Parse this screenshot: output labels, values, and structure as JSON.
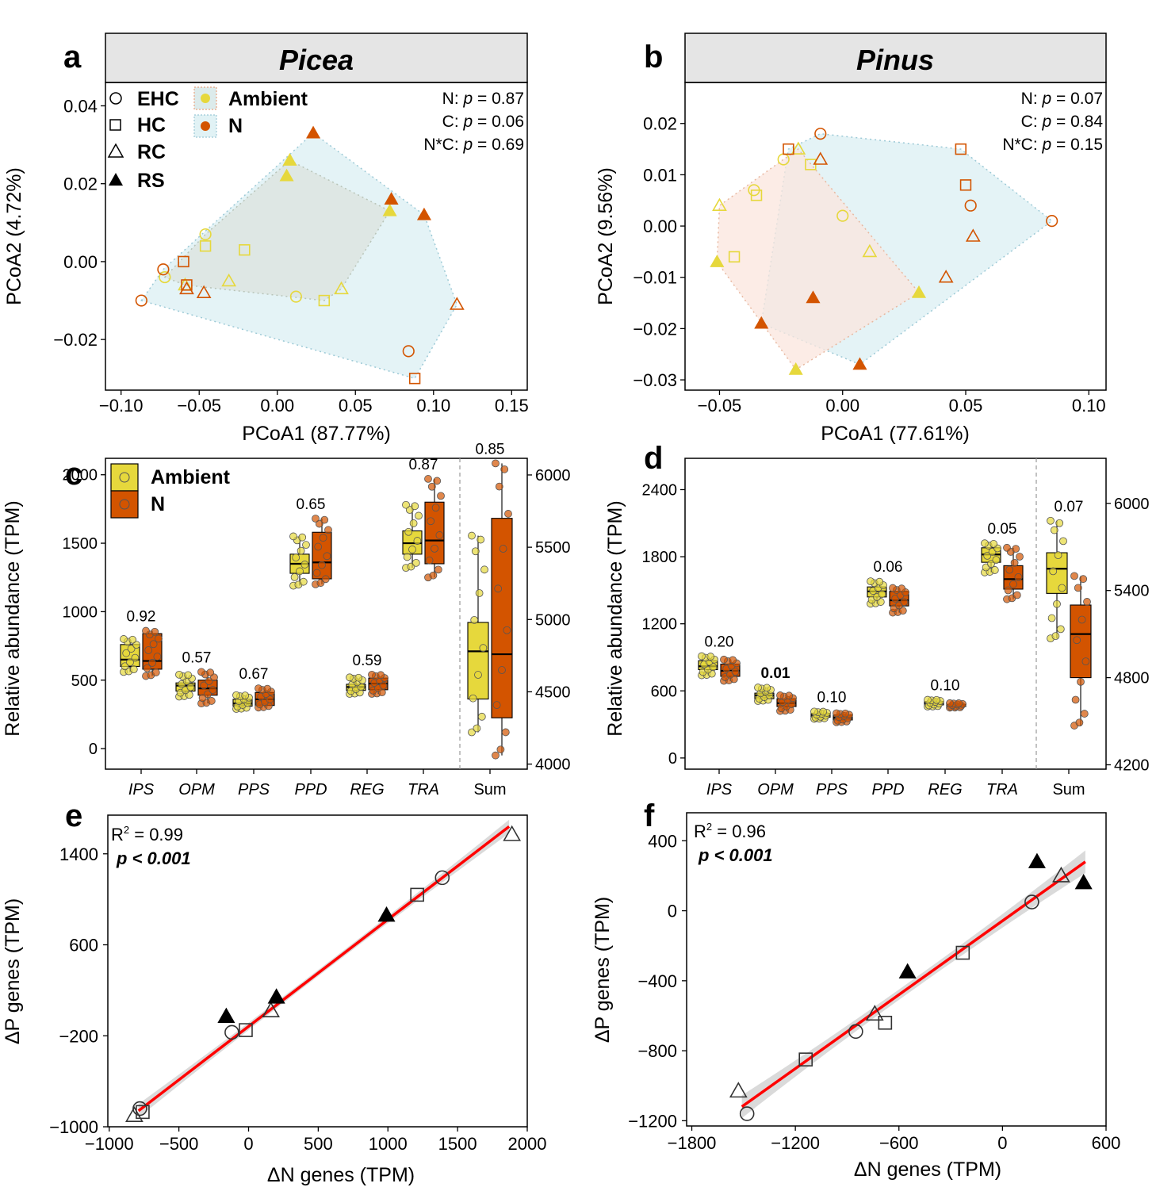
{
  "colors": {
    "ambient": "#E6D83C",
    "n": "#D35400",
    "ambient_hull": "#DCEBEB",
    "n_hull": "#E1F2F5",
    "n_hull_b": "#FBE6DE",
    "fit": "#FF0000",
    "band": "#D3D3D3"
  },
  "legend": {
    "shapes": [
      {
        "label": "EHC",
        "shape": "circle"
      },
      {
        "label": "HC",
        "shape": "square"
      },
      {
        "label": "RC",
        "shape": "triangle-open"
      },
      {
        "label": "RS",
        "shape": "triangle-filled"
      }
    ],
    "treatments": [
      {
        "label": "Ambient",
        "color_key": "ambient"
      },
      {
        "label": "N",
        "color_key": "n"
      }
    ]
  },
  "chart_data": [
    {
      "panel": "a",
      "type": "scatter",
      "title": "Picea",
      "xlabel": "PCoA1 (87.77%)",
      "ylabel": "PCoA2 (4.72%)",
      "xlim": [
        -0.11,
        0.16
      ],
      "ylim": [
        -0.033,
        0.046
      ],
      "xticks": [
        "−0.10",
        "−0.05",
        "0.00",
        "0.05",
        "0.10",
        "0.15"
      ],
      "xtick_values": [
        -0.1,
        -0.05,
        0.0,
        0.05,
        0.1,
        0.15
      ],
      "yticks": [
        "−0.02",
        "0.00",
        "0.02",
        "0.04"
      ],
      "ytick_values": [
        -0.02,
        0.0,
        0.02,
        0.04
      ],
      "stats": [
        {
          "label": "N: ",
          "p": "p = 0.87"
        },
        {
          "label": "C: ",
          "p": "p = 0.06"
        },
        {
          "label": "N*C: ",
          "p": "p = 0.69"
        }
      ],
      "points": [
        {
          "x": -0.072,
          "y": -0.004,
          "s": "EHC",
          "t": "ambient"
        },
        {
          "x": -0.046,
          "y": 0.007,
          "s": "EHC",
          "t": "ambient"
        },
        {
          "x": 0.012,
          "y": -0.009,
          "s": "EHC",
          "t": "ambient"
        },
        {
          "x": -0.046,
          "y": 0.004,
          "s": "HC",
          "t": "ambient"
        },
        {
          "x": -0.021,
          "y": 0.003,
          "s": "HC",
          "t": "ambient"
        },
        {
          "x": 0.03,
          "y": -0.01,
          "s": "HC",
          "t": "ambient"
        },
        {
          "x": -0.059,
          "y": -0.006,
          "s": "RC",
          "t": "ambient"
        },
        {
          "x": -0.031,
          "y": -0.005,
          "s": "RC",
          "t": "ambient"
        },
        {
          "x": 0.041,
          "y": -0.007,
          "s": "RC",
          "t": "ambient"
        },
        {
          "x": 0.006,
          "y": 0.022,
          "s": "RS",
          "t": "ambient"
        },
        {
          "x": 0.008,
          "y": 0.026,
          "s": "RS",
          "t": "ambient"
        },
        {
          "x": 0.072,
          "y": 0.013,
          "s": "RS",
          "t": "ambient"
        },
        {
          "x": -0.087,
          "y": -0.01,
          "s": "EHC",
          "t": "n"
        },
        {
          "x": -0.073,
          "y": -0.002,
          "s": "EHC",
          "t": "n"
        },
        {
          "x": 0.084,
          "y": -0.023,
          "s": "EHC",
          "t": "n"
        },
        {
          "x": -0.06,
          "y": 0.0,
          "s": "HC",
          "t": "n"
        },
        {
          "x": -0.058,
          "y": -0.006,
          "s": "HC",
          "t": "n"
        },
        {
          "x": 0.088,
          "y": -0.03,
          "s": "HC",
          "t": "n"
        },
        {
          "x": -0.058,
          "y": -0.007,
          "s": "RC",
          "t": "n"
        },
        {
          "x": -0.047,
          "y": -0.008,
          "s": "RC",
          "t": "n"
        },
        {
          "x": 0.115,
          "y": -0.011,
          "s": "RC",
          "t": "n"
        },
        {
          "x": 0.023,
          "y": 0.033,
          "s": "RS",
          "t": "n"
        },
        {
          "x": 0.073,
          "y": 0.016,
          "s": "RS",
          "t": "n"
        },
        {
          "x": 0.094,
          "y": 0.012,
          "s": "RS",
          "t": "n"
        }
      ]
    },
    {
      "panel": "b",
      "type": "scatter",
      "title": "Pinus",
      "xlabel": "PCoA1 (77.61%)",
      "ylabel": "PCoA2 (9.56%)",
      "xlim": [
        -0.064,
        0.107
      ],
      "ylim": [
        -0.032,
        0.028
      ],
      "xticks": [
        "−0.05",
        "0.00",
        "0.05",
        "0.10"
      ],
      "xtick_values": [
        -0.05,
        0.0,
        0.05,
        0.1
      ],
      "yticks": [
        "−0.03",
        "−0.02",
        "−0.01",
        "0.00",
        "0.01",
        "0.02"
      ],
      "ytick_values": [
        -0.03,
        -0.02,
        -0.01,
        0.0,
        0.01,
        0.02
      ],
      "stats": [
        {
          "label": "N: ",
          "p": "p = 0.07"
        },
        {
          "label": "C: ",
          "p": "p = 0.84"
        },
        {
          "label": "N*C: ",
          "p": "p = 0.15"
        }
      ],
      "points": [
        {
          "x": -0.036,
          "y": 0.007,
          "s": "EHC",
          "t": "ambient"
        },
        {
          "x": -0.024,
          "y": 0.013,
          "s": "EHC",
          "t": "ambient"
        },
        {
          "x": 0.0,
          "y": 0.002,
          "s": "EHC",
          "t": "ambient"
        },
        {
          "x": -0.044,
          "y": -0.006,
          "s": "HC",
          "t": "ambient"
        },
        {
          "x": -0.035,
          "y": 0.006,
          "s": "HC",
          "t": "ambient"
        },
        {
          "x": -0.013,
          "y": 0.012,
          "s": "HC",
          "t": "ambient"
        },
        {
          "x": -0.05,
          "y": 0.004,
          "s": "RC",
          "t": "ambient"
        },
        {
          "x": -0.018,
          "y": 0.015,
          "s": "RC",
          "t": "ambient"
        },
        {
          "x": 0.011,
          "y": -0.005,
          "s": "RC",
          "t": "ambient"
        },
        {
          "x": -0.051,
          "y": -0.007,
          "s": "RS",
          "t": "ambient"
        },
        {
          "x": -0.019,
          "y": -0.028,
          "s": "RS",
          "t": "ambient"
        },
        {
          "x": 0.031,
          "y": -0.013,
          "s": "RS",
          "t": "ambient"
        },
        {
          "x": -0.009,
          "y": 0.018,
          "s": "EHC",
          "t": "n"
        },
        {
          "x": 0.052,
          "y": 0.004,
          "s": "EHC",
          "t": "n"
        },
        {
          "x": 0.085,
          "y": 0.001,
          "s": "EHC",
          "t": "n"
        },
        {
          "x": -0.022,
          "y": 0.015,
          "s": "HC",
          "t": "n"
        },
        {
          "x": 0.048,
          "y": 0.015,
          "s": "HC",
          "t": "n"
        },
        {
          "x": 0.05,
          "y": 0.008,
          "s": "HC",
          "t": "n"
        },
        {
          "x": -0.009,
          "y": 0.013,
          "s": "RC",
          "t": "n"
        },
        {
          "x": 0.042,
          "y": -0.01,
          "s": "RC",
          "t": "n"
        },
        {
          "x": 0.053,
          "y": -0.002,
          "s": "RC",
          "t": "n"
        },
        {
          "x": -0.033,
          "y": -0.019,
          "s": "RS",
          "t": "n"
        },
        {
          "x": -0.012,
          "y": -0.014,
          "s": "RS",
          "t": "n"
        },
        {
          "x": 0.007,
          "y": -0.027,
          "s": "RS",
          "t": "n"
        }
      ]
    },
    {
      "panel": "c",
      "type": "box",
      "ylabel": "Relative abundance (TPM)",
      "ylim": [
        -150,
        2120
      ],
      "yticks": [
        "0",
        "500",
        "1000",
        "1500",
        "2000"
      ],
      "ytick_values": [
        0,
        500,
        1000,
        1500,
        2000
      ],
      "y2lim": [
        3965,
        6115
      ],
      "y2ticks": [
        "4000",
        "4500",
        "5000",
        "5500",
        "6000"
      ],
      "y2tick_values": [
        4000,
        4500,
        5000,
        5500,
        6000
      ],
      "categories": [
        "IPS",
        "OPM",
        "PPS",
        "PPD",
        "REG",
        "TRA",
        "Sum"
      ],
      "pvalues": [
        "0.92",
        "0.57",
        "0.67",
        "0.65",
        "0.59",
        "0.87",
        "0.85"
      ],
      "pvalue_bold": [
        false,
        false,
        false,
        false,
        false,
        false,
        false
      ],
      "boxes": [
        {
          "cat": "IPS",
          "t": "ambient",
          "min": 560,
          "q1": 600,
          "med": 650,
          "q3": 760,
          "max": 800,
          "axis": "left"
        },
        {
          "cat": "IPS",
          "t": "n",
          "min": 530,
          "q1": 580,
          "med": 640,
          "q3": 840,
          "max": 860,
          "axis": "left"
        },
        {
          "cat": "OPM",
          "t": "ambient",
          "min": 380,
          "q1": 420,
          "med": 460,
          "q3": 480,
          "max": 540,
          "axis": "left"
        },
        {
          "cat": "OPM",
          "t": "n",
          "min": 330,
          "q1": 390,
          "med": 440,
          "q3": 500,
          "max": 560,
          "axis": "left"
        },
        {
          "cat": "PPS",
          "t": "ambient",
          "min": 290,
          "q1": 310,
          "med": 330,
          "q3": 360,
          "max": 390,
          "axis": "left"
        },
        {
          "cat": "PPS",
          "t": "n",
          "min": 300,
          "q1": 315,
          "med": 360,
          "q3": 410,
          "max": 440,
          "axis": "left"
        },
        {
          "cat": "PPD",
          "t": "ambient",
          "min": 1190,
          "q1": 1280,
          "med": 1350,
          "q3": 1420,
          "max": 1550,
          "axis": "left"
        },
        {
          "cat": "PPD",
          "t": "n",
          "min": 1200,
          "q1": 1240,
          "med": 1360,
          "q3": 1580,
          "max": 1680,
          "axis": "left"
        },
        {
          "cat": "REG",
          "t": "ambient",
          "min": 400,
          "q1": 425,
          "med": 450,
          "q3": 470,
          "max": 520,
          "axis": "left"
        },
        {
          "cat": "REG",
          "t": "n",
          "min": 400,
          "q1": 430,
          "med": 475,
          "q3": 515,
          "max": 540,
          "axis": "left"
        },
        {
          "cat": "TRA",
          "t": "ambient",
          "min": 1320,
          "q1": 1420,
          "med": 1500,
          "q3": 1590,
          "max": 1780,
          "axis": "left"
        },
        {
          "cat": "TRA",
          "t": "n",
          "min": 1250,
          "q1": 1350,
          "med": 1520,
          "q3": 1800,
          "max": 1970,
          "axis": "left"
        },
        {
          "cat": "Sum",
          "t": "ambient",
          "min": 4220,
          "q1": 4450,
          "med": 4780,
          "q3": 4980,
          "max": 5580,
          "axis": "right"
        },
        {
          "cat": "Sum",
          "t": "n",
          "min": 4060,
          "q1": 4320,
          "med": 4760,
          "q3": 5700,
          "max": 6080,
          "axis": "right"
        }
      ],
      "legend": [
        "Ambient",
        "N"
      ]
    },
    {
      "panel": "d",
      "type": "box",
      "ylabel": "Relative abundance (TPM)",
      "ylim": [
        -100,
        2680
      ],
      "yticks": [
        "0",
        "600",
        "1200",
        "1800",
        "2400"
      ],
      "ytick_values": [
        0,
        600,
        1200,
        1800,
        2400
      ],
      "y2lim": [
        4170,
        6310
      ],
      "y2ticks": [
        "4200",
        "4800",
        "5400",
        "6000"
      ],
      "y2tick_values": [
        4200,
        4800,
        5400,
        6000
      ],
      "categories": [
        "IPS",
        "OPM",
        "PPS",
        "PPD",
        "REG",
        "TRA",
        "Sum"
      ],
      "pvalues": [
        "0.20",
        "0.01",
        "0.10",
        "0.06",
        "0.10",
        "0.05",
        "0.07"
      ],
      "pvalue_bold": [
        false,
        true,
        false,
        false,
        false,
        false,
        false
      ],
      "boxes": [
        {
          "cat": "IPS",
          "t": "ambient",
          "min": 740,
          "q1": 790,
          "med": 820,
          "q3": 870,
          "max": 910,
          "axis": "left"
        },
        {
          "cat": "IPS",
          "t": "n",
          "min": 690,
          "q1": 730,
          "med": 780,
          "q3": 840,
          "max": 880,
          "axis": "left"
        },
        {
          "cat": "OPM",
          "t": "ambient",
          "min": 510,
          "q1": 530,
          "med": 560,
          "q3": 580,
          "max": 630,
          "axis": "left"
        },
        {
          "cat": "OPM",
          "t": "n",
          "min": 420,
          "q1": 460,
          "med": 490,
          "q3": 530,
          "max": 560,
          "axis": "left"
        },
        {
          "cat": "PPS",
          "t": "ambient",
          "min": 350,
          "q1": 365,
          "med": 385,
          "q3": 400,
          "max": 415,
          "axis": "left"
        },
        {
          "cat": "PPS",
          "t": "n",
          "min": 320,
          "q1": 340,
          "med": 360,
          "q3": 385,
          "max": 400,
          "axis": "left"
        },
        {
          "cat": "PPD",
          "t": "ambient",
          "min": 1380,
          "q1": 1440,
          "med": 1490,
          "q3": 1530,
          "max": 1580,
          "axis": "left"
        },
        {
          "cat": "PPD",
          "t": "n",
          "min": 1300,
          "q1": 1360,
          "med": 1410,
          "q3": 1490,
          "max": 1520,
          "axis": "left"
        },
        {
          "cat": "REG",
          "t": "ambient",
          "min": 460,
          "q1": 475,
          "med": 490,
          "q3": 505,
          "max": 520,
          "axis": "left"
        },
        {
          "cat": "REG",
          "t": "n",
          "min": 450,
          "q1": 460,
          "med": 475,
          "q3": 480,
          "max": 490,
          "axis": "left"
        },
        {
          "cat": "TRA",
          "t": "ambient",
          "min": 1660,
          "q1": 1750,
          "med": 1820,
          "q3": 1880,
          "max": 1920,
          "axis": "left"
        },
        {
          "cat": "TRA",
          "t": "n",
          "min": 1420,
          "q1": 1510,
          "med": 1600,
          "q3": 1720,
          "max": 1880,
          "axis": "left"
        },
        {
          "cat": "Sum",
          "t": "ambient",
          "min": 5070,
          "q1": 5380,
          "med": 5550,
          "q3": 5660,
          "max": 5880,
          "axis": "right"
        },
        {
          "cat": "Sum",
          "t": "n",
          "min": 4470,
          "q1": 4800,
          "med": 5100,
          "q3": 5300,
          "max": 5500,
          "axis": "right"
        }
      ]
    },
    {
      "panel": "e",
      "type": "scatter",
      "xlabel": "ΔN genes (TPM)",
      "ylabel": "ΔP genes (TPM)",
      "xlim": [
        -1010,
        2000
      ],
      "ylim": [
        -1000,
        1740
      ],
      "xticks": [
        "−1000",
        "−500",
        "0",
        "500",
        "1000",
        "1500",
        "2000"
      ],
      "xtick_values": [
        -1000,
        -500,
        0,
        500,
        1000,
        1500,
        2000
      ],
      "yticks": [
        "−1000",
        "−200",
        "600",
        "1400"
      ],
      "ytick_values": [
        -1000,
        -200,
        600,
        1400
      ],
      "r2_label": "R",
      "r2_sup": "2",
      "r2_value": " = 0.99",
      "p_label": "p < 0.001",
      "fit": {
        "x": [
          -790,
          1870
        ],
        "y": [
          -860,
          1640
        ]
      },
      "band_halfwidth": 60,
      "points": [
        {
          "x": -820,
          "y": -900,
          "s": "RC"
        },
        {
          "x": -780,
          "y": -840,
          "s": "EHC"
        },
        {
          "x": -760,
          "y": -870,
          "s": "HC"
        },
        {
          "x": -160,
          "y": -30,
          "s": "RS"
        },
        {
          "x": -120,
          "y": -170,
          "s": "EHC"
        },
        {
          "x": -20,
          "y": -150,
          "s": "HC"
        },
        {
          "x": 160,
          "y": 20,
          "s": "RC"
        },
        {
          "x": 200,
          "y": 140,
          "s": "RS"
        },
        {
          "x": 990,
          "y": 860,
          "s": "RS"
        },
        {
          "x": 1210,
          "y": 1040,
          "s": "HC"
        },
        {
          "x": 1390,
          "y": 1190,
          "s": "EHC"
        },
        {
          "x": 1890,
          "y": 1570,
          "s": "RC"
        }
      ]
    },
    {
      "panel": "f",
      "type": "scatter",
      "xlabel": "ΔN genes (TPM)",
      "ylabel": "ΔP genes (TPM)",
      "xlim": [
        -1830,
        600
      ],
      "ylim": [
        -1230,
        560
      ],
      "xticks": [
        "−1800",
        "−1200",
        "−600",
        "0",
        "600"
      ],
      "xtick_values": [
        -1800,
        -1200,
        -600,
        0,
        600
      ],
      "yticks": [
        "−1200",
        "−800",
        "−400",
        "0",
        "400"
      ],
      "ytick_values": [
        -1200,
        -800,
        -400,
        0,
        400
      ],
      "r2_label": "R",
      "r2_sup": "2",
      "r2_value": " = 0.96",
      "p_label": "p < 0.001",
      "fit": {
        "x": [
          -1510,
          480
        ],
        "y": [
          -1120,
          280
        ]
      },
      "band_halfwidth": 65,
      "points": [
        {
          "x": -1530,
          "y": -1030,
          "s": "RC"
        },
        {
          "x": -1480,
          "y": -1160,
          "s": "EHC"
        },
        {
          "x": -1140,
          "y": -850,
          "s": "HC"
        },
        {
          "x": -850,
          "y": -690,
          "s": "EHC"
        },
        {
          "x": -740,
          "y": -590,
          "s": "RC"
        },
        {
          "x": -680,
          "y": -640,
          "s": "HC"
        },
        {
          "x": -550,
          "y": -350,
          "s": "RS"
        },
        {
          "x": -230,
          "y": -240,
          "s": "HC"
        },
        {
          "x": 170,
          "y": 50,
          "s": "EHC"
        },
        {
          "x": 200,
          "y": 280,
          "s": "RS"
        },
        {
          "x": 340,
          "y": 200,
          "s": "RC"
        },
        {
          "x": 470,
          "y": 160,
          "s": "RS"
        }
      ]
    }
  ]
}
